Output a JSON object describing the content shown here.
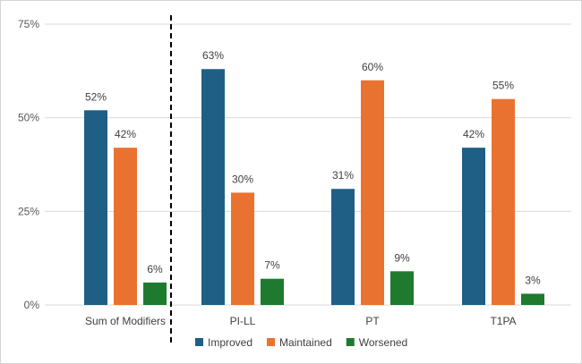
{
  "chart_data": {
    "type": "bar",
    "categories": [
      "Sum of Modifiers",
      "PI-LL",
      "PT",
      "T1PA"
    ],
    "series": [
      {
        "name": "Improved",
        "values": [
          52,
          63,
          31,
          42
        ],
        "color": "#1f5f85"
      },
      {
        "name": "Maintained",
        "values": [
          42,
          30,
          60,
          55
        ],
        "color": "#ea7230"
      },
      {
        "name": "Worsened",
        "values": [
          6,
          7,
          9,
          3
        ],
        "color": "#1e7a2e"
      }
    ],
    "value_suffix": "%",
    "ylim": [
      0,
      75
    ],
    "yticks": [
      0,
      25,
      50,
      75
    ],
    "ytick_labels": [
      "0%",
      "25%",
      "50%",
      "75%"
    ],
    "grid": true,
    "legend_position": "bottom",
    "separator": "dashed vertical line between Sum of Modifiers and PI-LL",
    "title": "",
    "xlabel": "",
    "ylabel": ""
  }
}
